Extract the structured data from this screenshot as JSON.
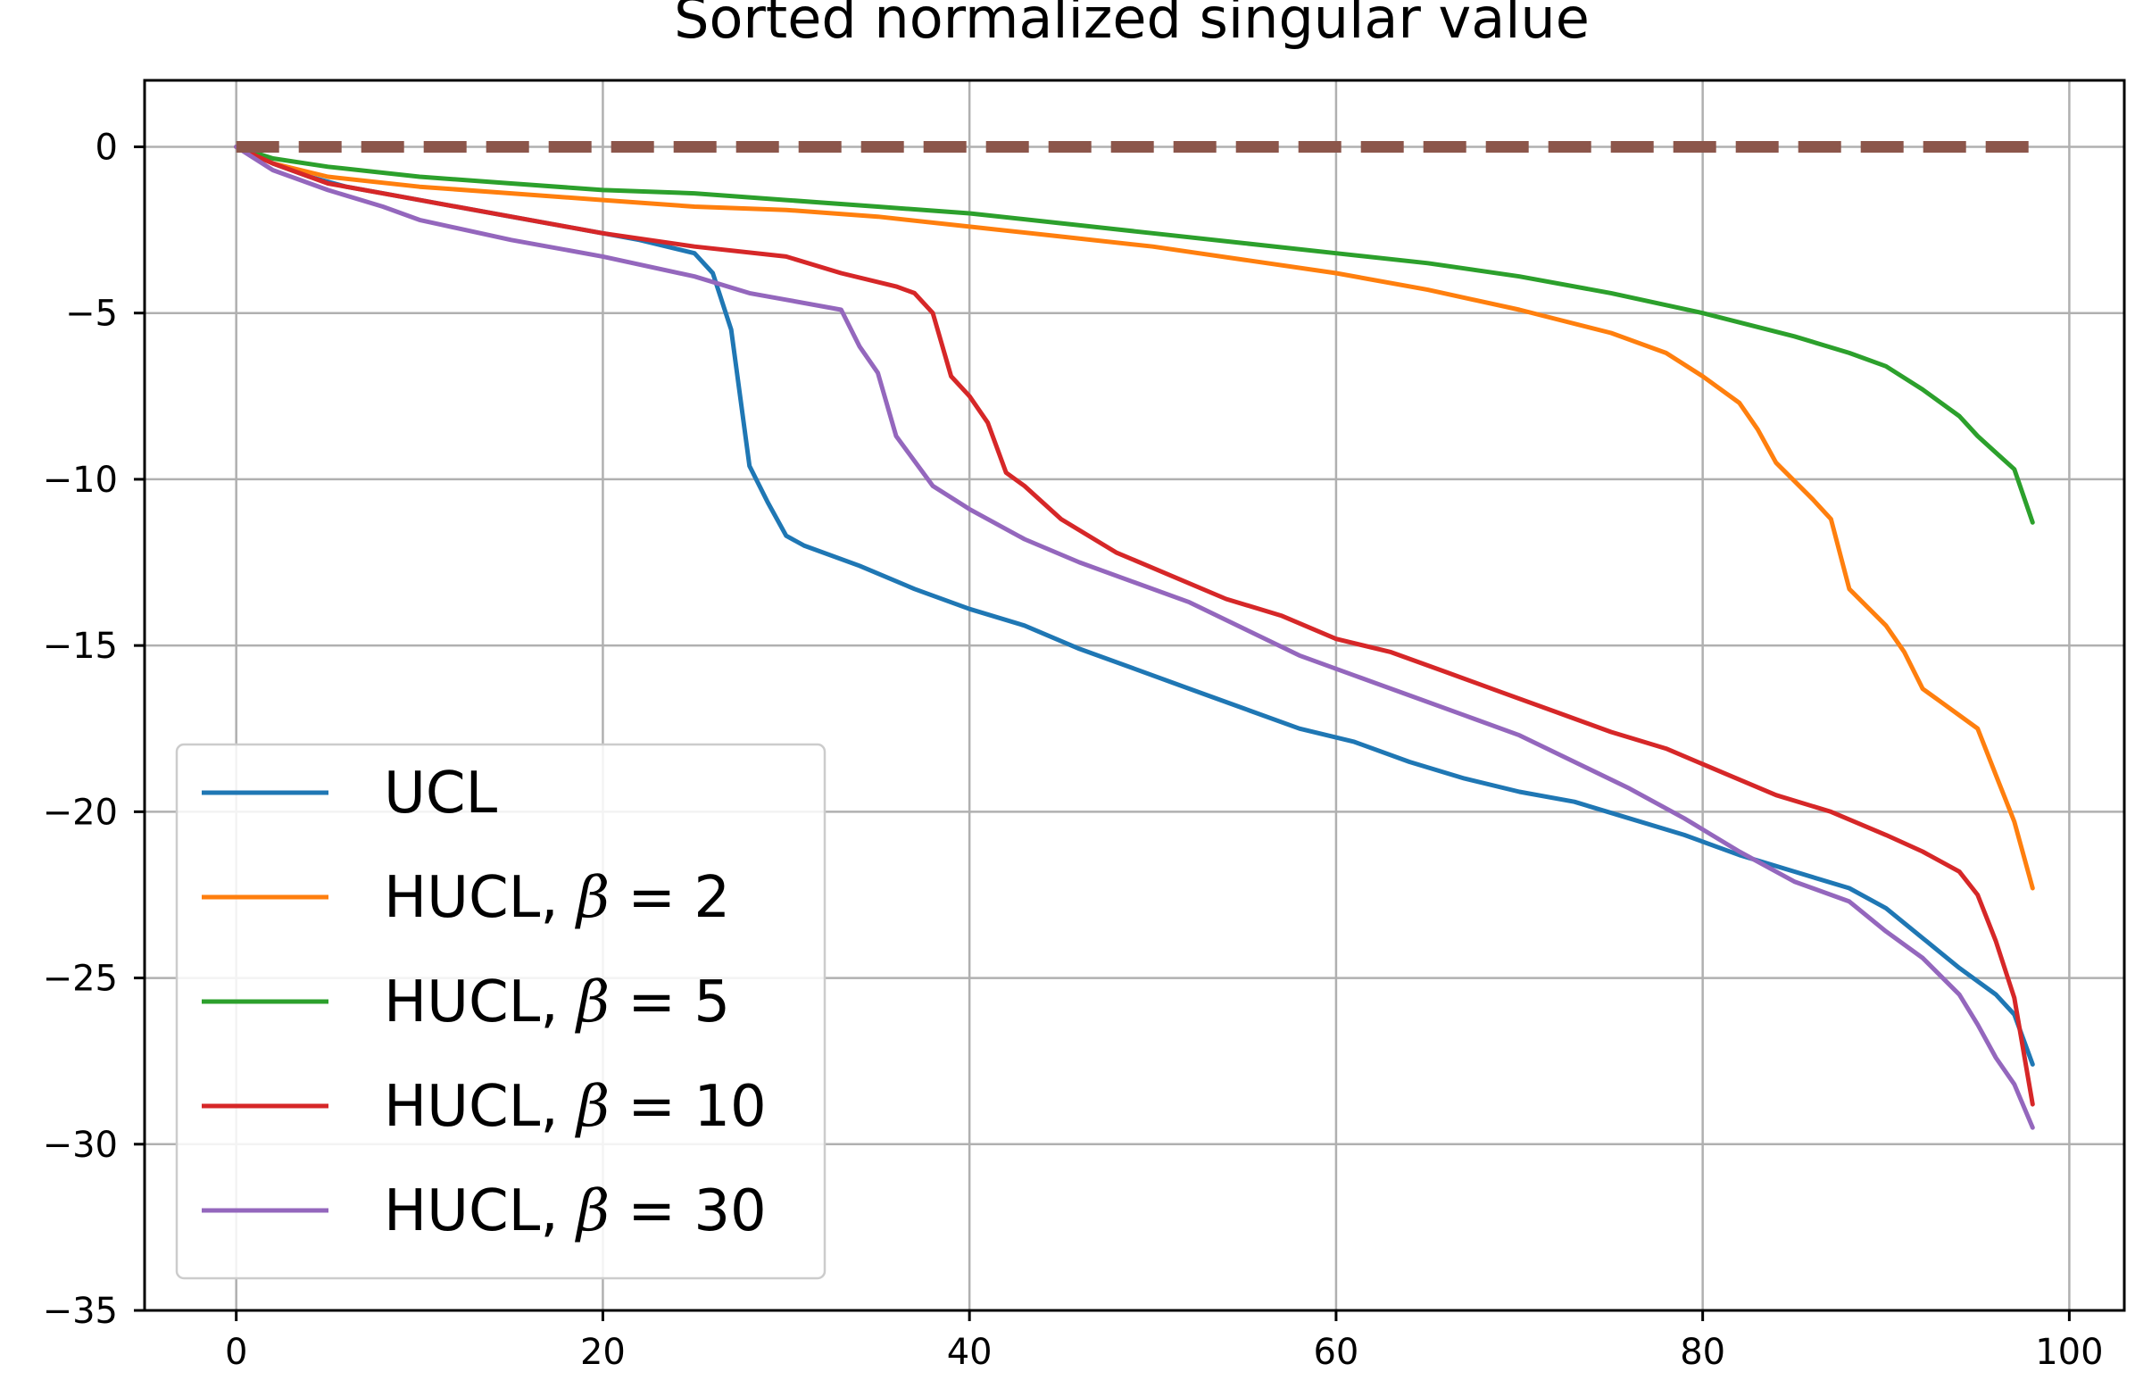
{
  "chart_data": {
    "type": "line",
    "title": "Sorted normalized singular value",
    "xlabel": "",
    "ylabel": "",
    "xlim": [
      -5,
      103
    ],
    "ylim": [
      -35,
      2
    ],
    "xticks": [
      0,
      20,
      40,
      60,
      80,
      100
    ],
    "yticks": [
      0,
      -5,
      -10,
      -15,
      -20,
      -25,
      -30,
      -35
    ],
    "xtick_labels": [
      "0",
      "20",
      "40",
      "60",
      "80",
      "100"
    ],
    "ytick_labels": [
      "0",
      "−5",
      "−10",
      "−15",
      "−20",
      "−25",
      "−30",
      "−35"
    ],
    "grid": true,
    "legend_position": "lower-left",
    "series": [
      {
        "name": "UCL",
        "legend_prefix": "UCL",
        "legend_math": "",
        "color": "#1f77b4",
        "dashed": false,
        "x": [
          0,
          2,
          4,
          6,
          8,
          10,
          14,
          18,
          22,
          25,
          26,
          27,
          28,
          29,
          30,
          31,
          34,
          37,
          40,
          43,
          46,
          49,
          52,
          55,
          58,
          61,
          64,
          67,
          70,
          73,
          76,
          79,
          82,
          85,
          88,
          90,
          92,
          94,
          96,
          97,
          98
        ],
        "y": [
          0,
          -0.5,
          -0.9,
          -1.2,
          -1.4,
          -1.6,
          -2.0,
          -2.4,
          -2.8,
          -3.2,
          -3.8,
          -5.5,
          -9.6,
          -10.7,
          -11.7,
          -12.0,
          -12.6,
          -13.3,
          -13.9,
          -14.4,
          -15.1,
          -15.7,
          -16.3,
          -16.9,
          -17.5,
          -17.9,
          -18.5,
          -19.0,
          -19.4,
          -19.7,
          -20.2,
          -20.7,
          -21.3,
          -21.8,
          -22.3,
          -22.9,
          -23.8,
          -24.7,
          -25.5,
          -26.1,
          -27.6
        ]
      },
      {
        "name": "HUCL, β = 2",
        "legend_prefix": "HUCL, ",
        "legend_math": "β = 2",
        "color": "#ff7f0e",
        "dashed": false,
        "x": [
          0,
          2,
          5,
          10,
          15,
          20,
          25,
          30,
          35,
          40,
          45,
          50,
          55,
          60,
          65,
          70,
          75,
          78,
          80,
          82,
          83,
          84,
          86,
          87,
          88,
          90,
          91,
          92,
          93,
          94,
          95,
          96,
          97,
          98
        ],
        "y": [
          0,
          -0.5,
          -0.9,
          -1.2,
          -1.4,
          -1.6,
          -1.8,
          -1.9,
          -2.1,
          -2.4,
          -2.7,
          -3.0,
          -3.4,
          -3.8,
          -4.3,
          -4.9,
          -5.6,
          -6.2,
          -6.9,
          -7.7,
          -8.5,
          -9.5,
          -10.6,
          -11.2,
          -13.3,
          -14.4,
          -15.2,
          -16.3,
          -16.7,
          -17.1,
          -17.5,
          -18.9,
          -20.3,
          -22.3
        ]
      },
      {
        "name": "HUCL, β = 5",
        "legend_prefix": "HUCL, ",
        "legend_math": "β = 5",
        "color": "#2ca02c",
        "dashed": false,
        "x": [
          0,
          2,
          5,
          10,
          15,
          20,
          25,
          30,
          35,
          40,
          45,
          50,
          55,
          60,
          65,
          70,
          75,
          80,
          85,
          88,
          90,
          92,
          94,
          95,
          96,
          97,
          98
        ],
        "y": [
          0,
          -0.35,
          -0.6,
          -0.9,
          -1.1,
          -1.3,
          -1.4,
          -1.6,
          -1.8,
          -2.0,
          -2.3,
          -2.6,
          -2.9,
          -3.2,
          -3.5,
          -3.9,
          -4.4,
          -5.0,
          -5.7,
          -6.2,
          -6.6,
          -7.3,
          -8.1,
          -8.7,
          -9.2,
          -9.7,
          -11.3
        ]
      },
      {
        "name": "HUCL, β = 10",
        "legend_prefix": "HUCL, ",
        "legend_math": "β = 10",
        "color": "#d62728",
        "dashed": false,
        "x": [
          0,
          2,
          5,
          10,
          15,
          20,
          25,
          30,
          33,
          36,
          37,
          38,
          39,
          40,
          41,
          42,
          43,
          45,
          48,
          51,
          54,
          57,
          60,
          63,
          66,
          69,
          72,
          75,
          78,
          81,
          84,
          87,
          90,
          92,
          94,
          95,
          96,
          97,
          98
        ],
        "y": [
          0,
          -0.5,
          -1.1,
          -1.6,
          -2.1,
          -2.6,
          -3.0,
          -3.3,
          -3.8,
          -4.2,
          -4.4,
          -5.0,
          -6.9,
          -7.5,
          -8.3,
          -9.8,
          -10.2,
          -11.2,
          -12.2,
          -12.9,
          -13.6,
          -14.1,
          -14.8,
          -15.2,
          -15.8,
          -16.4,
          -17.0,
          -17.6,
          -18.1,
          -18.8,
          -19.5,
          -20.0,
          -20.7,
          -21.2,
          -21.8,
          -22.5,
          -23.9,
          -25.6,
          -28.8
        ]
      },
      {
        "name": "HUCL, β = 30",
        "legend_prefix": "HUCL, ",
        "legend_math": "β = 30",
        "color": "#9467bd",
        "dashed": false,
        "x": [
          0,
          2,
          5,
          8,
          10,
          15,
          20,
          25,
          28,
          30,
          33,
          34,
          35,
          36,
          38,
          40,
          43,
          46,
          49,
          52,
          55,
          58,
          61,
          64,
          67,
          70,
          73,
          76,
          79,
          82,
          85,
          88,
          90,
          92,
          94,
          95,
          96,
          97,
          98
        ],
        "y": [
          0,
          -0.7,
          -1.3,
          -1.8,
          -2.2,
          -2.8,
          -3.3,
          -3.9,
          -4.4,
          -4.6,
          -4.9,
          -6.0,
          -6.8,
          -8.7,
          -10.2,
          -10.9,
          -11.8,
          -12.5,
          -13.1,
          -13.7,
          -14.5,
          -15.3,
          -15.9,
          -16.5,
          -17.1,
          -17.7,
          -18.5,
          -19.3,
          -20.2,
          -21.2,
          -22.1,
          -22.7,
          -23.6,
          -24.4,
          -25.5,
          -26.4,
          -27.4,
          -28.2,
          -29.5
        ]
      },
      {
        "name": "",
        "legend_prefix": "",
        "legend_math": "",
        "color": "#8c564b",
        "dashed": true,
        "x": [
          0,
          98
        ],
        "y": [
          0,
          0
        ]
      }
    ]
  }
}
